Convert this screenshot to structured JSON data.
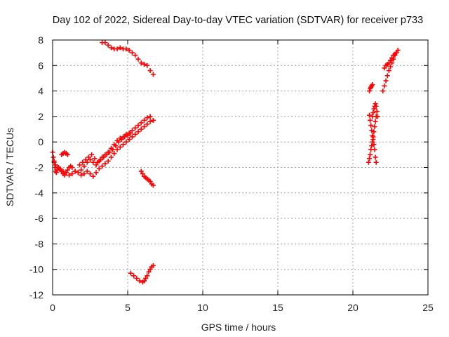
{
  "chart_data": {
    "type": "scatter",
    "title": "Day 102 of 2022, Sidereal Day-to-day VTEC variation (SDTVAR) for receiver p733",
    "xlabel": "GPS time / hours",
    "ylabel": "SDTVAR / TECUs",
    "xlim": [
      0,
      25
    ],
    "ylim": [
      -12,
      8
    ],
    "xticks": [
      0,
      5,
      10,
      15,
      20,
      25
    ],
    "yticks": [
      -12,
      -10,
      -8,
      -6,
      -4,
      -2,
      0,
      2,
      4,
      6,
      8
    ],
    "xtick_labels": [
      "0",
      "5",
      "10",
      "15",
      "20",
      "25"
    ],
    "ytick_labels": [
      "-12",
      "-10",
      "-8",
      "-6",
      "-4",
      "-2",
      "0",
      "2",
      "4",
      "6",
      "8"
    ],
    "grid": true,
    "marker": "plus",
    "color": "#ff0000",
    "series": [
      {
        "x": [
          0.0,
          0.05,
          0.1,
          0.15,
          0.2,
          0.25,
          0.3,
          0.4,
          0.5,
          0.6,
          0.7,
          0.8,
          0.9,
          1.0,
          1.1,
          1.2,
          1.3,
          1.5,
          1.7,
          1.9,
          2.1,
          2.3,
          2.5,
          2.7,
          2.9,
          3.1,
          3.3,
          3.5,
          3.7,
          3.9,
          4.1,
          4.3,
          4.5,
          4.7,
          4.9,
          5.1,
          5.3,
          5.5,
          5.7,
          5.9,
          6.1,
          6.3,
          6.5,
          6.7
        ],
        "y": [
          -0.8,
          -1.2,
          -1.6,
          -2.0,
          -2.3,
          -2.4,
          -2.2,
          -2.0,
          -2.1,
          -2.3,
          -2.5,
          -2.6,
          -2.4,
          -2.2,
          -2.0,
          -1.9,
          -2.0,
          -2.3,
          -2.4,
          -2.2,
          -1.9,
          -1.6,
          -1.4,
          -1.6,
          -1.8,
          -1.5,
          -1.2,
          -1.0,
          -0.8,
          -0.5,
          -0.2,
          0.1,
          0.3,
          0.4,
          0.6,
          0.7,
          0.9,
          1.1,
          1.3,
          1.5,
          1.7,
          1.9,
          2.0,
          1.7
        ]
      },
      {
        "x": [
          0.1,
          0.2,
          0.3,
          0.5,
          0.7,
          0.9,
          1.1,
          1.3,
          1.5,
          1.7,
          1.9,
          2.1,
          2.3,
          2.5,
          2.7,
          2.9,
          3.1,
          3.3,
          3.5,
          3.7,
          3.9,
          4.1,
          4.3,
          4.5,
          4.7,
          4.9,
          5.1,
          5.3,
          5.5,
          5.7,
          5.9,
          6.1,
          6.3,
          6.5,
          6.7
        ],
        "y": [
          -1.5,
          -1.8,
          -2.0,
          -2.2,
          -2.3,
          -2.4,
          -2.6,
          -2.5,
          -2.3,
          -2.4,
          -2.6,
          -2.5,
          -2.3,
          -2.5,
          -2.7,
          -2.4,
          -2.1,
          -1.9,
          -1.7,
          -1.5,
          -1.2,
          -0.9,
          -0.6,
          -0.4,
          -0.2,
          0.0,
          0.2,
          0.4,
          0.6,
          0.8,
          1.0,
          1.2,
          1.4,
          1.6,
          1.7
        ]
      },
      {
        "x": [
          0.6,
          0.7,
          0.8,
          0.9,
          1.0
        ],
        "y": [
          -1.0,
          -0.9,
          -0.8,
          -0.9,
          -1.0
        ]
      },
      {
        "x": [
          1.8,
          2.0,
          2.2,
          2.4,
          2.6,
          2.8,
          3.0,
          3.2,
          3.4,
          3.6,
          3.8,
          4.0,
          4.2,
          4.4,
          4.6,
          4.8,
          5.0,
          5.2
        ],
        "y": [
          -1.8,
          -1.6,
          -1.4,
          -1.2,
          -1.0,
          -1.3,
          -1.6,
          -1.4,
          -1.2,
          -1.0,
          -0.8,
          -0.6,
          -0.3,
          0.0,
          0.2,
          0.4,
          0.5,
          0.7
        ]
      },
      {
        "x": [
          3.3,
          3.5,
          3.7,
          3.9,
          4.1,
          4.3,
          4.5,
          4.7,
          4.9,
          5.1,
          5.3,
          5.5,
          5.7,
          5.9,
          6.1,
          6.3,
          6.5,
          6.7
        ],
        "y": [
          7.8,
          7.8,
          7.6,
          7.4,
          7.3,
          7.3,
          7.4,
          7.3,
          7.3,
          7.2,
          7.0,
          6.8,
          6.5,
          6.2,
          6.1,
          6.0,
          5.6,
          5.3
        ]
      },
      {
        "x": [
          5.9,
          6.0,
          6.1,
          6.2,
          6.3,
          6.4,
          6.5,
          6.6,
          6.7
        ],
        "y": [
          -2.3,
          -2.5,
          -2.7,
          -2.8,
          -2.9,
          -3.0,
          -3.1,
          -3.3,
          -3.4
        ]
      },
      {
        "x": [
          5.2,
          5.4,
          5.6,
          5.8,
          6.0,
          6.1,
          6.2,
          6.3,
          6.4,
          6.5,
          6.6,
          6.7
        ],
        "y": [
          -10.3,
          -10.5,
          -10.7,
          -10.9,
          -11.0,
          -10.9,
          -10.7,
          -10.5,
          -10.2,
          -10.0,
          -9.8,
          -9.7
        ]
      },
      {
        "x": [
          21.1,
          21.15,
          21.2,
          21.25,
          21.3
        ],
        "y": [
          4.0,
          4.2,
          4.3,
          4.4,
          4.5
        ]
      },
      {
        "x": [
          21.1,
          21.15,
          21.2,
          21.25,
          21.3,
          21.35,
          21.4,
          21.45,
          21.5,
          21.55
        ],
        "y": [
          2.1,
          1.7,
          1.3,
          0.9,
          0.5,
          0.2,
          -0.2,
          -0.6,
          -1.2,
          -1.6
        ]
      },
      {
        "x": [
          21.3,
          21.35,
          21.4,
          21.45,
          21.5,
          21.55,
          21.6,
          21.65
        ],
        "y": [
          2.0,
          2.3,
          2.6,
          2.8,
          3.0,
          2.8,
          2.4,
          2.0
        ]
      },
      {
        "x": [
          21.05,
          21.1,
          21.15,
          21.2,
          21.25,
          21.3,
          21.35,
          21.4,
          21.45,
          21.5,
          21.55,
          21.6
        ],
        "y": [
          -1.6,
          -1.3,
          -1.0,
          -0.6,
          -0.3,
          0.0,
          0.4,
          0.8,
          1.2,
          1.6,
          2.0,
          2.4
        ]
      },
      {
        "x": [
          22.0,
          22.1,
          22.2,
          22.3,
          22.4,
          22.5,
          22.6,
          22.7,
          22.8,
          22.9,
          23.0
        ],
        "y": [
          4.0,
          4.4,
          4.8,
          5.2,
          5.6,
          5.9,
          6.2,
          6.5,
          6.8,
          7.0,
          7.2
        ]
      },
      {
        "x": [
          22.1,
          22.2,
          22.3,
          22.4,
          22.5,
          22.6,
          22.7,
          22.8,
          22.9
        ],
        "y": [
          5.8,
          6.0,
          6.1,
          6.2,
          6.4,
          6.6,
          6.8,
          6.9,
          7.0
        ]
      }
    ]
  }
}
